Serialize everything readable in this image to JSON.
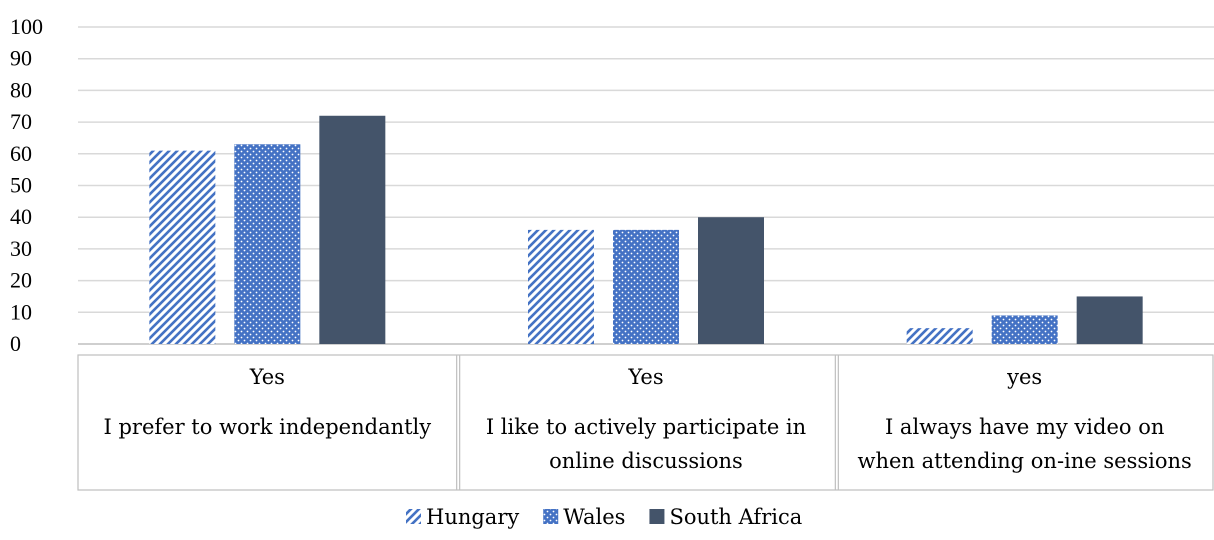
{
  "chart_data": {
    "type": "bar",
    "ylim": [
      0,
      100
    ],
    "yticks": [
      0,
      10,
      20,
      30,
      40,
      50,
      60,
      70,
      80,
      90,
      100
    ],
    "grid": true,
    "legend_position": "bottom",
    "categories": [
      {
        "response": "Yes",
        "statement": [
          "I prefer to work independantly"
        ]
      },
      {
        "response": "Yes",
        "statement": [
          "I like to actively participate in",
          "online discussions"
        ]
      },
      {
        "response": "yes",
        "statement": [
          "I always have my video on",
          "when attending on-ine sessions"
        ]
      }
    ],
    "series": [
      {
        "name": "Hungary",
        "values": [
          61,
          36,
          5
        ],
        "color": "#4472c4",
        "pattern": "diagonal-stripes"
      },
      {
        "name": "Wales",
        "values": [
          63,
          36,
          9
        ],
        "color": "#4472c4",
        "pattern": "dots"
      },
      {
        "name": "South Africa",
        "values": [
          72,
          40,
          15
        ],
        "color": "#44546a",
        "pattern": "solid"
      }
    ]
  }
}
